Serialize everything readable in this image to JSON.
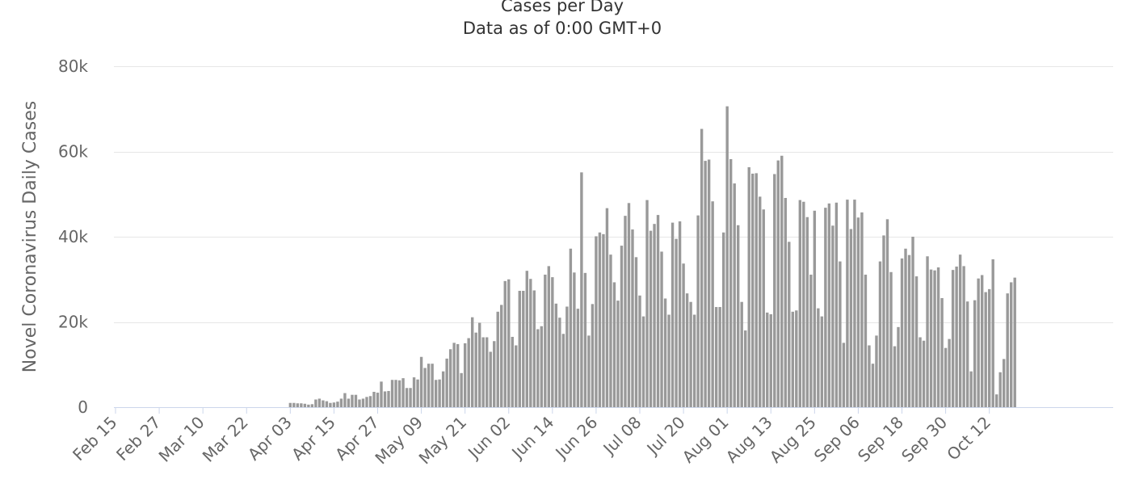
{
  "chart_data": {
    "type": "bar",
    "title": "Cases per Day",
    "subtitle": "Data as of 0:00 GMT+0",
    "ylabel": "Novel Coronavirus Daily Cases",
    "xlabel": "",
    "ylim": [
      0,
      80000
    ],
    "y_ticks": [
      {
        "value": 0,
        "label": "0"
      },
      {
        "value": 20000,
        "label": "20k"
      },
      {
        "value": 40000,
        "label": "40k"
      },
      {
        "value": 60000,
        "label": "60k"
      },
      {
        "value": 80000,
        "label": "80k"
      }
    ],
    "x_tick_labels": [
      "Feb 15",
      "Feb 27",
      "Mar 10",
      "Mar 22",
      "Apr 03",
      "Apr 15",
      "Apr 27",
      "May 09",
      "May 21",
      "Jun 02",
      "Jun 14",
      "Jun 26",
      "Jul 08",
      "Jul 20",
      "Aug 01",
      "Aug 13",
      "Aug 25",
      "Sep 06",
      "Sep 18",
      "Sep 30",
      "Oct 12"
    ],
    "x_tick_interval_days": 12,
    "start_date": "Feb 15",
    "grid": true,
    "legend": "none",
    "bar_color": "#999999",
    "values": [
      0,
      0,
      0,
      0,
      0,
      0,
      0,
      0,
      0,
      0,
      0,
      0,
      0,
      0,
      0,
      0,
      0,
      0,
      0,
      0,
      0,
      0,
      0,
      0,
      0,
      0,
      0,
      0,
      0,
      0,
      0,
      0,
      0,
      0,
      0,
      0,
      0,
      0,
      0,
      0,
      0,
      0,
      0,
      0,
      0,
      0,
      0,
      0,
      1000,
      1000,
      900,
      900,
      800,
      600,
      700,
      1800,
      2000,
      1600,
      1400,
      1000,
      1100,
      1300,
      2000,
      3300,
      2000,
      2900,
      2900,
      1800,
      2000,
      2400,
      2600,
      3600,
      3400,
      6000,
      3700,
      3800,
      6400,
      6400,
      6300,
      6800,
      4500,
      4500,
      7000,
      6500,
      11800,
      9200,
      10200,
      10200,
      6400,
      6500,
      8400,
      11400,
      13600,
      15100,
      14800,
      8000,
      15000,
      16200,
      21100,
      17500,
      19800,
      16400,
      16400,
      13000,
      15500,
      22400,
      24000,
      29600,
      30000,
      16500,
      14500,
      27300,
      27300,
      32000,
      30100,
      27400,
      18300,
      19000,
      31100,
      33100,
      30500,
      24300,
      21000,
      17200,
      23600,
      37200,
      31600,
      23100,
      55100,
      31500,
      16800,
      24200,
      40100,
      41000,
      40600,
      46700,
      35800,
      29300,
      25000,
      37900,
      44900,
      47900,
      41700,
      35200,
      26200,
      21300,
      48600,
      41400,
      43000,
      45100,
      36500,
      25500,
      21700,
      43300,
      39500,
      43600,
      33700,
      26700,
      24700,
      21700,
      45000,
      65300,
      57800,
      58100,
      48300,
      23500,
      23500,
      41000,
      70600,
      58200,
      52500,
      42700,
      24700,
      18000,
      56300,
      54800,
      54900,
      49400,
      46400,
      22200,
      21800,
      54700,
      57900,
      59000,
      49100,
      38800,
      22400,
      22700,
      48600,
      48200,
      44600,
      31100,
      46100,
      23200,
      21300,
      46800,
      47800,
      42600,
      48000,
      34200,
      15100,
      48700,
      41800,
      48700,
      44500,
      45700,
      31100,
      14500,
      10200,
      16800,
      34200,
      40300,
      44100,
      31700,
      14300,
      18800,
      34900,
      37200,
      35700,
      40000,
      30700,
      16400,
      15600,
      35400,
      32300,
      32100,
      32800,
      25600,
      13900,
      16000,
      32200,
      33000,
      35800,
      33100,
      24800,
      8400,
      25100,
      30200,
      31000,
      27000,
      27700,
      34700,
      3000,
      8200,
      11300,
      26700,
      29300,
      30400
    ]
  }
}
